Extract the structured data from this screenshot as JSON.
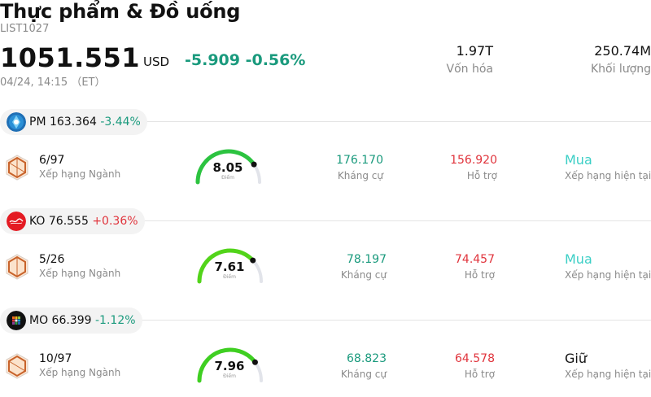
{
  "header": {
    "title": "Thực phẩm & Đồ uống",
    "code": "LIST1027",
    "price": "1051.551",
    "currency": "USD",
    "change": "-5.909 -0.56%",
    "time": "04/24, 14:15 （ET）",
    "market_cap": {
      "value": "1.97T",
      "label": "Vốn hóa"
    },
    "volume": {
      "value": "250.74M",
      "label": "Khối lượng"
    }
  },
  "colors": {
    "negative": "#1a9a7d",
    "positive": "#e0343c",
    "buy": "#3ccfc6",
    "gauge_track": "#e2e4ea"
  },
  "stocks": [
    {
      "ticker_price": "PM 163.364",
      "change": "-3.44%",
      "direction": "negative",
      "logo_icon": "philip-morris-logo-icon",
      "rank": "6/97",
      "rank_label": "Xếp hạng Ngành",
      "score": "8.05",
      "score_label": "Điểm",
      "gauge_color": "#2cc340",
      "gauge_fraction": 0.805,
      "resistance": "176.170",
      "resistance_label": "Kháng cự",
      "support": "156.920",
      "support_label": "Hỗ trợ",
      "rating": "Mua",
      "rating_type": "buy",
      "rating_label": "Xếp hạng hiện tại"
    },
    {
      "ticker_price": "KO 76.555",
      "change": "+0.36%",
      "direction": "positive",
      "logo_icon": "coca-cola-logo-icon",
      "rank": "5/26",
      "rank_label": "Xếp hạng Ngành",
      "score": "7.61",
      "score_label": "Điểm",
      "gauge_color": "#52d41a",
      "gauge_fraction": 0.761,
      "resistance": "78.197",
      "resistance_label": "Kháng cự",
      "support": "74.457",
      "support_label": "Hỗ trợ",
      "rating": "Mua",
      "rating_type": "buy",
      "rating_label": "Xếp hạng hiện tại"
    },
    {
      "ticker_price": "MO 66.399",
      "change": "-1.12%",
      "direction": "negative",
      "logo_icon": "altria-logo-icon",
      "rank": "10/97",
      "rank_label": "Xếp hạng Ngành",
      "score": "7.96",
      "score_label": "Điểm",
      "gauge_color": "#3fcf22",
      "gauge_fraction": 0.796,
      "resistance": "68.823",
      "resistance_label": "Kháng cự",
      "support": "64.578",
      "support_label": "Hỗ trợ",
      "rating": "Giữ",
      "rating_type": "hold",
      "rating_label": "Xếp hạng hiện tại"
    }
  ]
}
